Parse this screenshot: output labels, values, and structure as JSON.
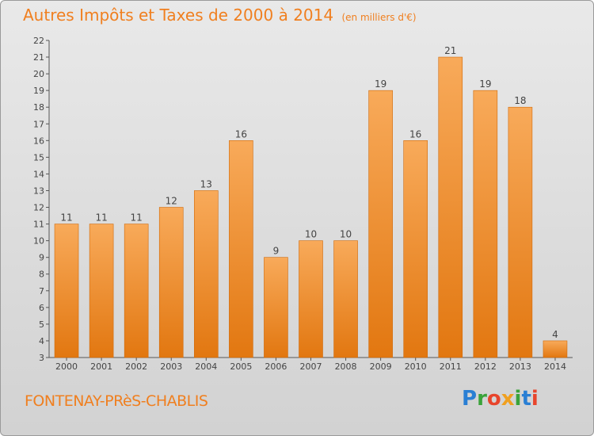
{
  "title": "Autres Impôts et Taxes de 2000 à 2014",
  "subtitle": "(en milliers d'€)",
  "location": "FONTENAY-PRèS-CHABLIS",
  "logo": "Proxiti",
  "colors": {
    "bar_light": "#f7a552",
    "bar_dark": "#e57b12",
    "title": "#f07f1f"
  },
  "chart_data": {
    "type": "bar",
    "title": "Autres Impôts et Taxes de 2000 à 2014",
    "subtitle": "(en milliers d'€)",
    "categories": [
      "2000",
      "2001",
      "2002",
      "2003",
      "2004",
      "2005",
      "2006",
      "2007",
      "2008",
      "2009",
      "2010",
      "2011",
      "2012",
      "2013",
      "2014"
    ],
    "values": [
      11,
      11,
      11,
      12,
      13,
      16,
      9,
      10,
      10,
      19,
      16,
      21,
      19,
      18,
      4
    ],
    "ylim": [
      3,
      22
    ],
    "yticks": [
      3,
      4,
      5,
      6,
      7,
      8,
      9,
      10,
      11,
      12,
      13,
      14,
      15,
      16,
      17,
      18,
      19,
      20,
      21,
      22
    ],
    "grid": false,
    "xlabel": "",
    "ylabel": ""
  }
}
